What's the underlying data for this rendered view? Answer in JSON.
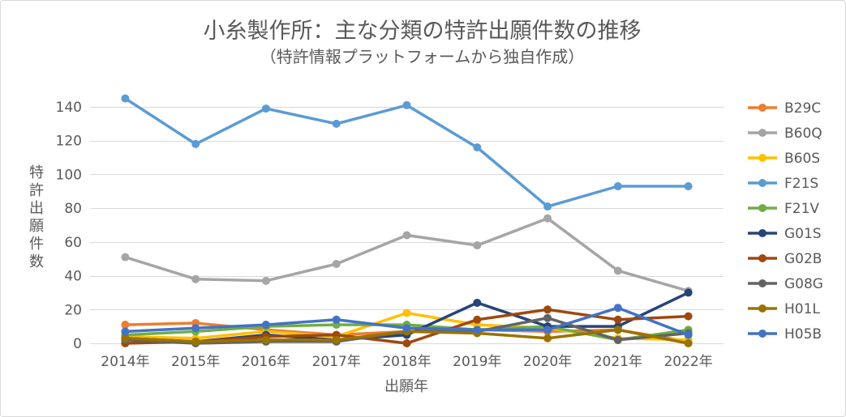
{
  "chart_data": {
    "type": "line",
    "title": "小糸製作所：主な分類の特許出願件数の推移",
    "subtitle": "（特許情報プラットフォームから独自作成）",
    "xlabel": "出願年",
    "ylabel": "特許出願件数",
    "categories": [
      "2014年",
      "2015年",
      "2016年",
      "2017年",
      "2018年",
      "2019年",
      "2020年",
      "2021年",
      "2022年"
    ],
    "ylim": [
      0,
      140
    ],
    "yticks": [
      0,
      20,
      40,
      60,
      80,
      100,
      120,
      140
    ],
    "grid": true,
    "legend": "right",
    "series": [
      {
        "name": "B29C",
        "color": "#ED7D31",
        "values": [
          11,
          12,
          8,
          5,
          7,
          8,
          7,
          8,
          1
        ]
      },
      {
        "name": "B60Q",
        "color": "#A5A5A5",
        "values": [
          51,
          38,
          37,
          47,
          64,
          58,
          74,
          43,
          31
        ]
      },
      {
        "name": "B60S",
        "color": "#FFC000",
        "values": [
          4,
          3,
          7,
          4,
          18,
          11,
          9,
          3,
          2
        ]
      },
      {
        "name": "F21S",
        "color": "#5B9BD5",
        "values": [
          145,
          118,
          139,
          130,
          141,
          116,
          81,
          93,
          93
        ]
      },
      {
        "name": "F21V",
        "color": "#70AD47",
        "values": [
          5,
          7,
          10,
          11,
          11,
          8,
          10,
          2,
          8
        ]
      },
      {
        "name": "G01S",
        "color": "#264478",
        "values": [
          3,
          1,
          5,
          2,
          5,
          24,
          10,
          10,
          30
        ]
      },
      {
        "name": "G02B",
        "color": "#9E480E",
        "values": [
          0,
          1,
          4,
          5,
          0,
          14,
          20,
          14,
          16
        ]
      },
      {
        "name": "G08G",
        "color": "#636363",
        "values": [
          2,
          0,
          1,
          1,
          7,
          7,
          15,
          2,
          6
        ]
      },
      {
        "name": "H01L",
        "color": "#997300",
        "values": [
          3,
          1,
          2,
          2,
          7,
          6,
          3,
          8,
          0
        ]
      },
      {
        "name": "H05B",
        "color": "#4472C4",
        "values": [
          7,
          9,
          11,
          14,
          9,
          8,
          8,
          21,
          5
        ]
      }
    ]
  }
}
